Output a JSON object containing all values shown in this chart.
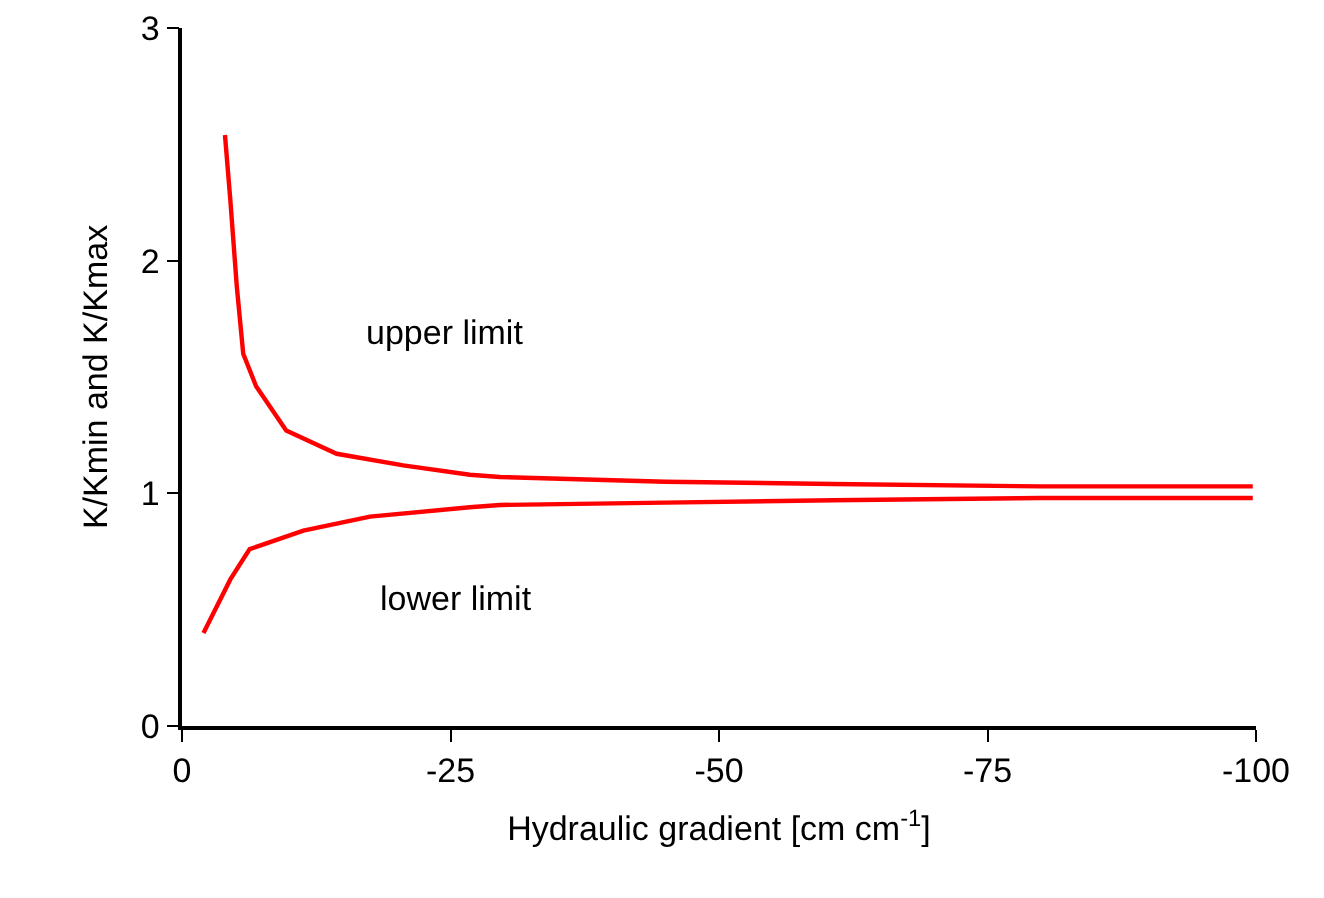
{
  "chart_data": {
    "type": "line",
    "xlabel": "Hydraulic gradient [cm cm$^{-1}$]",
    "ylabel": "K/Kmin and K/Kmax",
    "xlim": [
      0,
      -100
    ],
    "xticks": [
      0,
      -25,
      -50,
      -75,
      -100
    ],
    "ylim": [
      0,
      3
    ],
    "yticks": [
      0,
      1,
      2,
      3
    ],
    "grid": false,
    "marker": "none",
    "line_style": "solid",
    "series": [
      {
        "color": "#ff0000",
        "x": [
          -4.0,
          -4.5,
          -5.1,
          -5.7,
          -6.9,
          -9.7,
          -14.4,
          -20.6,
          -26.8,
          -29.6,
          -45,
          -60.6,
          -80,
          -99.7
        ],
        "values": [
          2.54,
          2.26,
          1.89,
          1.6,
          1.46,
          1.27,
          1.17,
          1.12,
          1.08,
          1.07,
          1.05,
          1.04,
          1.03,
          1.03
        ]
      },
      {
        "color": "#ff0000",
        "x": [
          -2.0,
          -4.5,
          -6.3,
          -11.3,
          -17.5,
          -26.8,
          -29.6,
          -45,
          -60.6,
          -80,
          -99.7
        ],
        "values": [
          0.4,
          0.63,
          0.76,
          0.84,
          0.9,
          0.94,
          0.95,
          0.96,
          0.97,
          0.98,
          0.98
        ]
      }
    ],
    "annotations": [
      "upper limit",
      "lower limit"
    ]
  }
}
